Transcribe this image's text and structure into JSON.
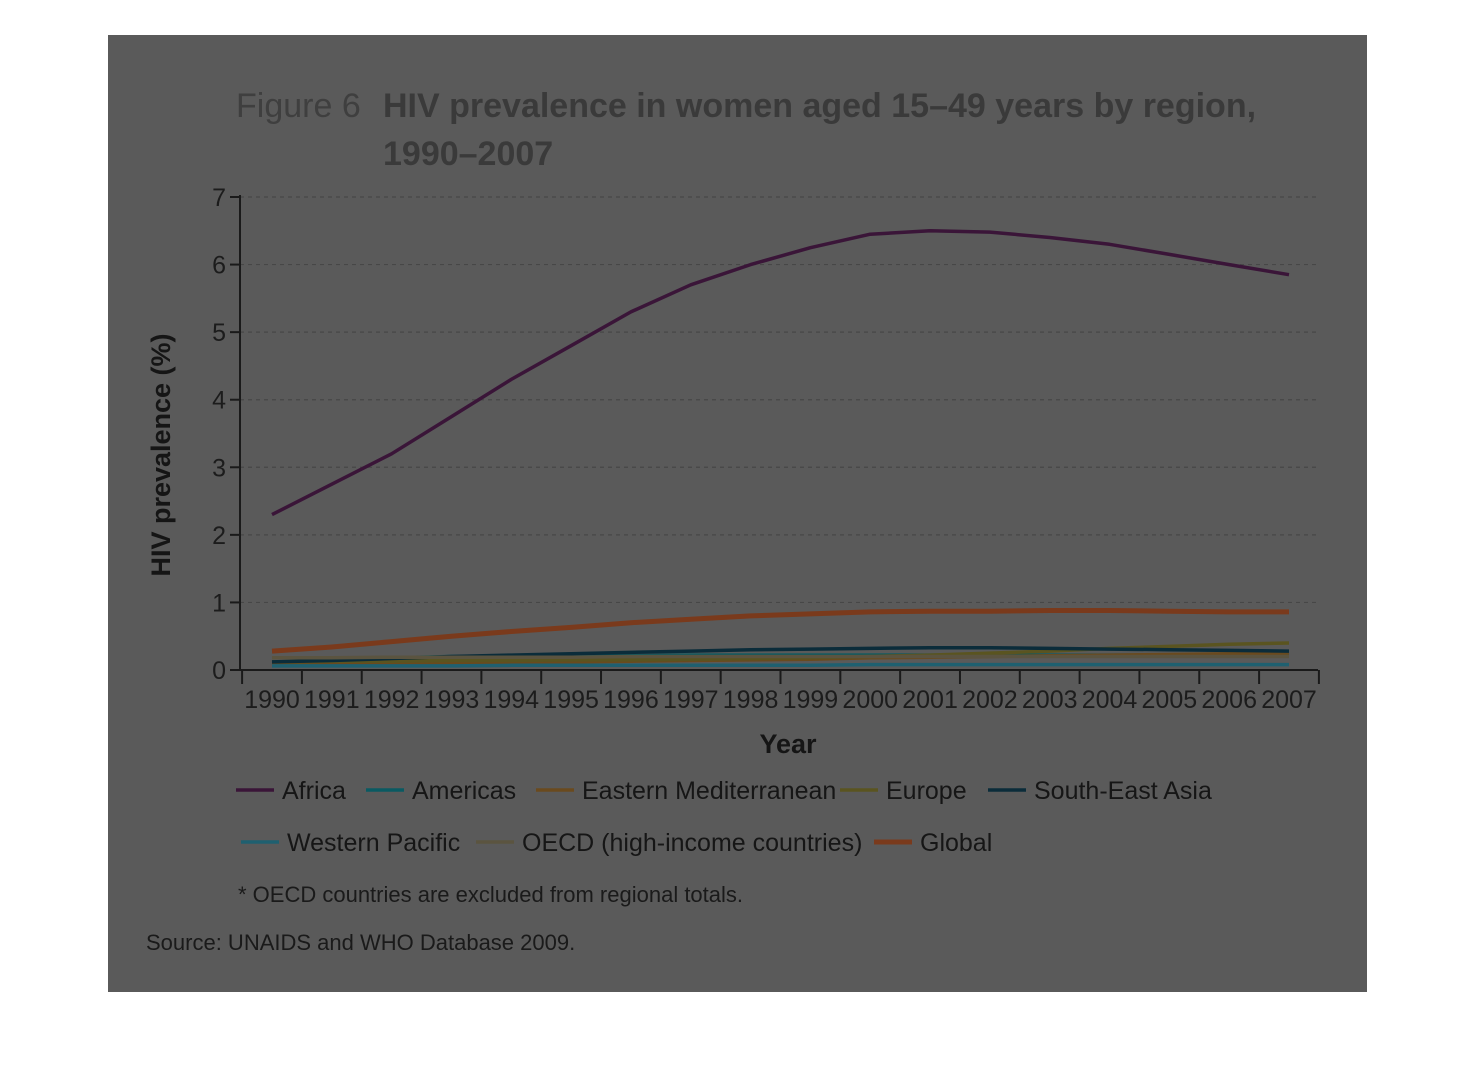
{
  "figure": {
    "label": "Figure 6",
    "title_line1": "HIV prevalence in women aged 15–49 years by region,",
    "title_line2": "1990–2007"
  },
  "notes": {
    "footnote": "* OECD countries are excluded from regional totals.",
    "source": "Source: UNAIDS and WHO Database 2009."
  },
  "chart_data": {
    "type": "line",
    "title": "HIV prevalence in women aged 15–49 years by region, 1990–2007",
    "xlabel": "Year",
    "ylabel": "HIV prevalence (%)",
    "ylim": [
      0,
      7
    ],
    "yticks": [
      0,
      1,
      2,
      3,
      4,
      5,
      6,
      7
    ],
    "grid": "horizontal dashed",
    "legend_position": "bottom",
    "x": [
      "1990",
      "1991",
      "1992",
      "1993",
      "1994",
      "1995",
      "1996",
      "1997",
      "1998",
      "1999",
      "2000",
      "2001",
      "2002",
      "2003",
      "2004",
      "2005",
      "2006",
      "2007"
    ],
    "series": [
      {
        "name": "Africa",
        "color": "#3a1538",
        "values": [
          2.3,
          2.75,
          3.2,
          3.75,
          4.3,
          4.8,
          5.3,
          5.7,
          6.0,
          6.25,
          6.45,
          6.5,
          6.48,
          6.4,
          6.3,
          6.15,
          6.0,
          5.85
        ]
      },
      {
        "name": "Americas",
        "color": "#0a5a62",
        "values": [
          0.1,
          0.14,
          0.18,
          0.2,
          0.2,
          0.2,
          0.21,
          0.22,
          0.22,
          0.22,
          0.22,
          0.22,
          0.22,
          0.22,
          0.22,
          0.22,
          0.22,
          0.22
        ]
      },
      {
        "name": "Eastern Mediterranean",
        "color": "#6a4a1e",
        "values": [
          0.08,
          0.09,
          0.1,
          0.1,
          0.11,
          0.12,
          0.13,
          0.14,
          0.15,
          0.16,
          0.18,
          0.19,
          0.2,
          0.21,
          0.22,
          0.23,
          0.24,
          0.25
        ]
      },
      {
        "name": "Europe",
        "color": "#5a5420",
        "values": [
          0.12,
          0.13,
          0.13,
          0.14,
          0.14,
          0.15,
          0.15,
          0.16,
          0.17,
          0.18,
          0.2,
          0.22,
          0.25,
          0.28,
          0.32,
          0.35,
          0.38,
          0.4
        ]
      },
      {
        "name": "South-East Asia",
        "color": "#0b2c3a",
        "values": [
          0.12,
          0.14,
          0.17,
          0.2,
          0.22,
          0.24,
          0.26,
          0.28,
          0.3,
          0.31,
          0.32,
          0.33,
          0.33,
          0.32,
          0.31,
          0.3,
          0.29,
          0.28
        ]
      },
      {
        "name": "Western Pacific",
        "color": "#1f6070",
        "values": [
          0.06,
          0.06,
          0.06,
          0.06,
          0.07,
          0.07,
          0.07,
          0.07,
          0.07,
          0.07,
          0.08,
          0.08,
          0.08,
          0.08,
          0.08,
          0.08,
          0.08,
          0.08
        ]
      },
      {
        "name": "OECD (high-income countries)",
        "color": "#5b5440",
        "values": [
          0.18,
          0.18,
          0.19,
          0.19,
          0.19,
          0.19,
          0.2,
          0.2,
          0.2,
          0.2,
          0.2,
          0.2,
          0.2,
          0.2,
          0.2,
          0.2,
          0.2,
          0.2
        ]
      },
      {
        "name": "Global",
        "color": "#7a3a1c",
        "values": [
          0.28,
          0.34,
          0.42,
          0.5,
          0.57,
          0.63,
          0.7,
          0.75,
          0.8,
          0.83,
          0.86,
          0.87,
          0.87,
          0.88,
          0.88,
          0.87,
          0.86,
          0.86
        ]
      }
    ]
  }
}
